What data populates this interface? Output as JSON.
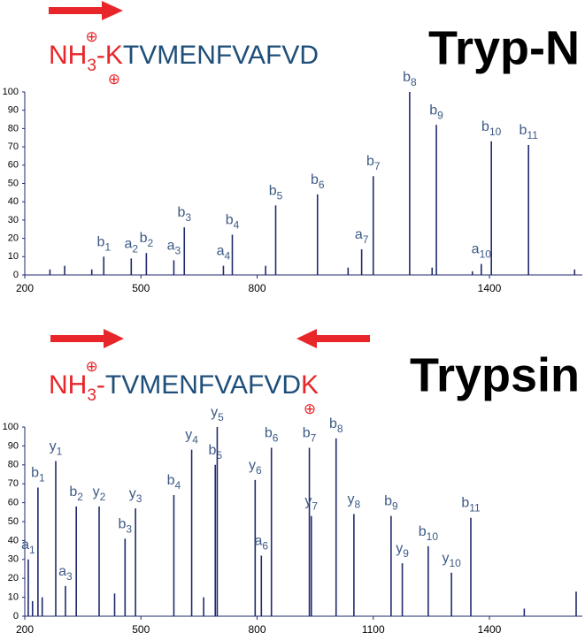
{
  "chart_data": [
    {
      "type": "bar",
      "title": "Tryp-N",
      "sequence": [
        {
          "text": "NH",
          "color": "#e8262a",
          "role": "text"
        },
        {
          "text": "3",
          "color": "#e8262a",
          "role": "sub"
        },
        {
          "text": "⊕",
          "color": "#e8262a",
          "role": "sup"
        },
        {
          "text": "-K",
          "color": "#e8262a",
          "role": "text"
        },
        {
          "text": "⊕",
          "color": "#e8262a",
          "role": "below"
        },
        {
          "text": "TVMENFVAFVD",
          "color": "#1f4e79",
          "role": "text"
        }
      ],
      "x": [
        265,
        303,
        373,
        404,
        475,
        514,
        585,
        612,
        713,
        736,
        822,
        848,
        956,
        1035,
        1070,
        1100,
        1194,
        1252,
        1263,
        1356,
        1379,
        1405,
        1501,
        1620
      ],
      "values": [
        3,
        5,
        3,
        10,
        9,
        12,
        8,
        26,
        5,
        22,
        5,
        38,
        44,
        4,
        14,
        54,
        100,
        4,
        82,
        2,
        6,
        73,
        71,
        3
      ],
      "labels": [
        null,
        null,
        null,
        {
          "ion": "b",
          "number": "1"
        },
        {
          "ion": "a",
          "number": "2"
        },
        {
          "ion": "b",
          "number": "2"
        },
        {
          "ion": "a",
          "number": "3"
        },
        {
          "ion": "b",
          "number": "3"
        },
        {
          "ion": "a",
          "number": "4"
        },
        {
          "ion": "b",
          "number": "4"
        },
        null,
        {
          "ion": "b",
          "number": "5"
        },
        {
          "ion": "b",
          "number": "6"
        },
        null,
        {
          "ion": "a",
          "number": "7"
        },
        {
          "ion": "b",
          "number": "7"
        },
        {
          "ion": "b",
          "number": "8"
        },
        null,
        {
          "ion": "b",
          "number": "9"
        },
        null,
        {
          "ion": "a",
          "number": "10"
        },
        {
          "ion": "b",
          "number": "10"
        },
        {
          "ion": "b",
          "number": "11"
        },
        null
      ],
      "color": "#1f2a6e",
      "xlim": [
        200,
        1640
      ],
      "ylim": [
        0,
        100
      ],
      "xticks": [
        200,
        500,
        800,
        1400
      ],
      "yticks": [
        0,
        10,
        20,
        30,
        40,
        50,
        60,
        70,
        80,
        90,
        100
      ]
    },
    {
      "type": "bar",
      "title": "Trypsin",
      "sequence": [
        {
          "text": "NH",
          "color": "#e8262a",
          "role": "text"
        },
        {
          "text": "3",
          "color": "#e8262a",
          "role": "sub"
        },
        {
          "text": "⊕",
          "color": "#e8262a",
          "role": "sup"
        },
        {
          "text": "-",
          "color": "#e8262a",
          "role": "text"
        },
        {
          "text": "TVMENFVAFVD",
          "color": "#1f4e79",
          "role": "text"
        },
        {
          "text": "K",
          "color": "#e8262a",
          "role": "text"
        },
        {
          "text": "⊕",
          "color": "#e8262a",
          "role": "below"
        }
      ],
      "x": [
        209,
        220,
        234,
        245,
        280,
        305,
        333,
        392,
        432,
        459,
        486,
        585,
        631,
        662,
        692,
        697,
        795,
        811,
        837,
        935,
        940,
        1004,
        1050,
        1146,
        1175,
        1242,
        1302,
        1352,
        1490,
        1624
      ],
      "values": [
        30,
        8,
        68,
        10,
        82,
        16,
        58,
        58,
        12,
        41,
        57,
        64,
        88,
        10,
        80,
        100,
        72,
        32,
        89,
        89,
        53,
        94,
        54,
        53,
        28,
        37,
        23,
        52,
        4,
        13
      ],
      "labels": [
        {
          "ion": "a",
          "number": "1"
        },
        null,
        {
          "ion": "b",
          "number": "1"
        },
        null,
        {
          "ion": "y",
          "number": "1"
        },
        {
          "ion": "a",
          "number": "3"
        },
        {
          "ion": "b",
          "number": "2"
        },
        {
          "ion": "y",
          "number": "2"
        },
        null,
        {
          "ion": "b",
          "number": "3"
        },
        {
          "ion": "y",
          "number": "3"
        },
        {
          "ion": "b",
          "number": "4"
        },
        {
          "ion": "y",
          "number": "4"
        },
        null,
        {
          "ion": "b",
          "number": "5"
        },
        {
          "ion": "y",
          "number": "5"
        },
        {
          "ion": "y",
          "number": "6"
        },
        {
          "ion": "a",
          "number": "6"
        },
        {
          "ion": "b",
          "number": "6"
        },
        {
          "ion": "b",
          "number": "7"
        },
        {
          "ion": "y",
          "number": "7"
        },
        {
          "ion": "b",
          "number": "8"
        },
        {
          "ion": "y",
          "number": "8"
        },
        {
          "ion": "b",
          "number": "9"
        },
        {
          "ion": "y",
          "number": "9"
        },
        {
          "ion": "b",
          "number": "10"
        },
        {
          "ion": "y",
          "number": "10"
        },
        {
          "ion": "b",
          "number": "11"
        },
        null,
        null
      ],
      "color": "#1f2a6e",
      "xlim": [
        200,
        1640
      ],
      "ylim": [
        0,
        100
      ],
      "xticks": [
        200,
        500,
        800,
        1100,
        1400
      ],
      "yticks": [
        0,
        10,
        20,
        30,
        40,
        50,
        60,
        70,
        80,
        90,
        100
      ]
    }
  ]
}
